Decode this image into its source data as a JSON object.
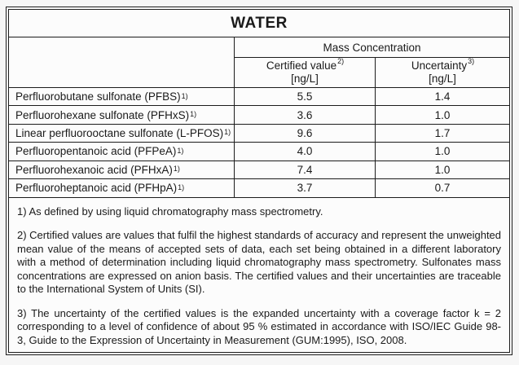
{
  "title": "WATER",
  "table": {
    "group_header": "Mass Concentration",
    "columns": [
      {
        "label": "Certified value",
        "footnote_ref": "2)",
        "unit": "[ng/L]"
      },
      {
        "label": "Uncertainty",
        "footnote_ref": "3)",
        "unit": "[ng/L]"
      }
    ],
    "rows": [
      {
        "analyte": "Perfluorobutane sulfonate (PFBS)",
        "footnote_ref": "1)",
        "certified_value": "5.5",
        "uncertainty": "1.4"
      },
      {
        "analyte": "Perfluorohexane sulfonate (PFHxS)",
        "footnote_ref": "1)",
        "certified_value": "3.6",
        "uncertainty": "1.0"
      },
      {
        "analyte": "Linear perfluorooctane sulfonate (L-PFOS)",
        "footnote_ref": "1)",
        "certified_value": "9.6",
        "uncertainty": "1.7"
      },
      {
        "analyte": "Perfluoropentanoic acid (PFPeA)",
        "footnote_ref": "1)",
        "certified_value": "4.0",
        "uncertainty": "1.0"
      },
      {
        "analyte": "Perfluorohexanoic acid (PFHxA)",
        "footnote_ref": "1)",
        "certified_value": "7.4",
        "uncertainty": "1.0"
      },
      {
        "analyte": "Perfluoroheptanoic acid (PFHpA)",
        "footnote_ref": "1)",
        "certified_value": "3.7",
        "uncertainty": "0.7"
      }
    ]
  },
  "footnotes": [
    "1) As defined by using liquid chromatography mass spectrometry.",
    "2) Certified values are values that fulfil the highest standards of accuracy and represent the unweighted mean value of the means of accepted sets of data, each set being obtained in a different laboratory with a method of determination including liquid chromatography mass spectrometry. Sulfonates mass concentrations are expressed on anion basis. The certified values and their uncertainties are traceable to the International System of Units (SI).",
    "3) The uncertainty of the certified values is the expanded uncertainty with a coverage factor k = 2 corresponding to a level of confidence of about 95 % estimated in accordance with ISO/IEC Guide 98-3, Guide to the Expression of Uncertainty in Measurement (GUM:1995), ISO, 2008."
  ],
  "colors": {
    "border": "#1c1c1c",
    "page_background": "#f6f6f6",
    "table_background": "#fcfcfc",
    "text": "#1a1a1a"
  }
}
